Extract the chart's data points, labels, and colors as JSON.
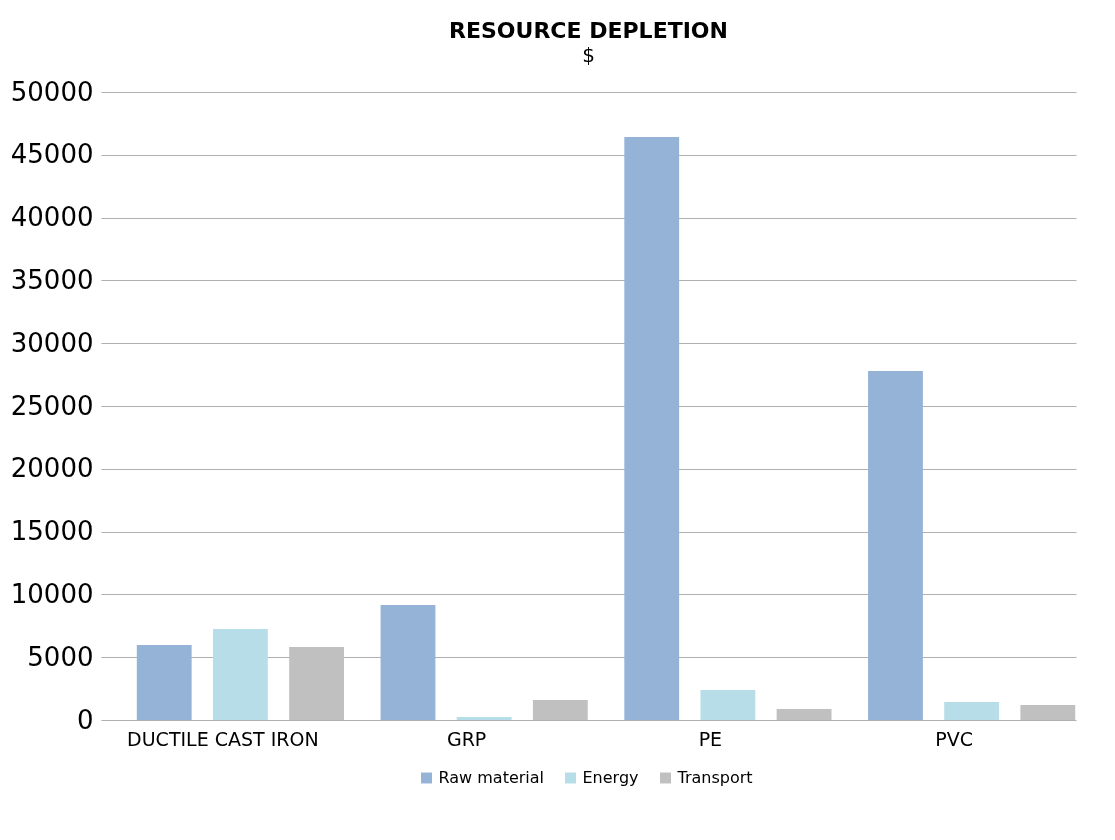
{
  "chart_data": {
    "type": "bar",
    "title": "RESOURCE DEPLETION",
    "subtitle": "$",
    "categories": [
      "DUCTILE CAST IRON",
      "GRP",
      "PE",
      "PVC"
    ],
    "series": [
      {
        "name": "Raw material",
        "color": "#95b3d7",
        "values": [
          5970,
          9160,
          46420,
          27790
        ]
      },
      {
        "name": "Energy",
        "color": "#b7dde8",
        "values": [
          7250,
          240,
          2390,
          1430
        ]
      },
      {
        "name": "Transport",
        "color": "#c0c0c0",
        "values": [
          5810,
          1590,
          880,
          1190
        ]
      }
    ],
    "ylim": [
      0,
      50000
    ],
    "yticks": [
      0,
      5000,
      10000,
      15000,
      20000,
      25000,
      30000,
      35000,
      40000,
      45000,
      50000
    ],
    "grid": "y",
    "legend": "bottom"
  }
}
